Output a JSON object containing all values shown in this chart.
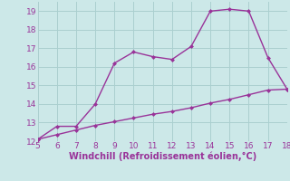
{
  "xlabel": "Windchill (Refroidissement éolien,°C)",
  "x_main": [
    5,
    6,
    7,
    8,
    9,
    10,
    11,
    12,
    13,
    14,
    15,
    16,
    17,
    18
  ],
  "y_main": [
    12.1,
    12.8,
    12.8,
    14.0,
    16.2,
    16.8,
    16.55,
    16.4,
    17.1,
    19.0,
    19.1,
    19.0,
    16.5,
    14.8
  ],
  "x_line2": [
    5,
    6,
    7,
    8,
    9,
    10,
    11,
    12,
    13,
    14,
    15,
    16,
    17,
    18
  ],
  "y_line2": [
    12.1,
    12.35,
    12.6,
    12.85,
    13.05,
    13.25,
    13.45,
    13.6,
    13.8,
    14.05,
    14.25,
    14.5,
    14.75,
    14.8
  ],
  "line_color": "#993399",
  "bg_color": "#cce8e8",
  "grid_color": "#aacfcf",
  "text_color": "#993399",
  "xlim": [
    5,
    18
  ],
  "ylim": [
    12,
    19.5
  ],
  "xticks": [
    5,
    6,
    7,
    8,
    9,
    10,
    11,
    12,
    13,
    14,
    15,
    16,
    17,
    18
  ],
  "yticks": [
    12,
    13,
    14,
    15,
    16,
    17,
    18,
    19
  ],
  "marker_size": 2.5,
  "line_width": 1.0
}
